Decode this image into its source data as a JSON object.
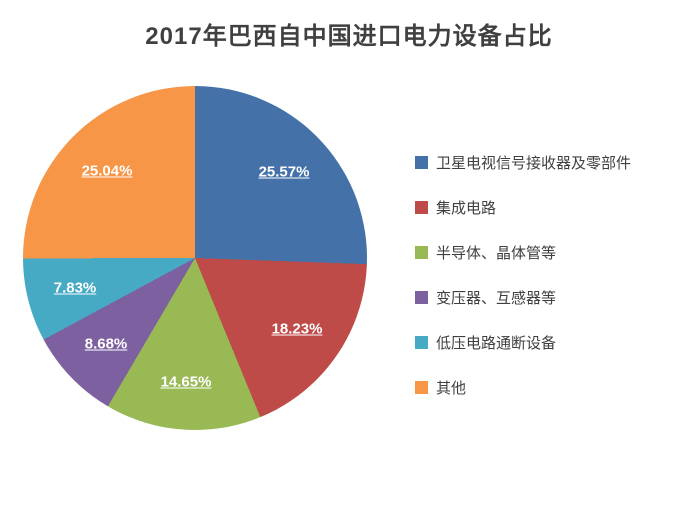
{
  "chart_data": {
    "type": "pie",
    "title": "2017年巴西自中国进口电力设备占比",
    "start_angle_deg": 0,
    "direction": "clockwise",
    "legend_position": "right",
    "slices": [
      {
        "label": "卫星电视信号接收器及零部件",
        "value": 25.57,
        "display": "25.57%",
        "color": "#4472A8"
      },
      {
        "label": "集成电路",
        "value": 18.23,
        "display": "18.23%",
        "color": "#BE4B48"
      },
      {
        "label": "半导体、晶体管等",
        "value": 14.65,
        "display": "14.65%",
        "color": "#98B954"
      },
      {
        "label": "变压器、互感器等",
        "value": 8.68,
        "display": "8.68%",
        "color": "#7D60A0"
      },
      {
        "label": "低压电路通断设备",
        "value": 7.83,
        "display": "7.83%",
        "color": "#46AAC5"
      },
      {
        "label": "其他",
        "value": 25.04,
        "display": "25.04%",
        "color": "#F79646"
      }
    ]
  }
}
